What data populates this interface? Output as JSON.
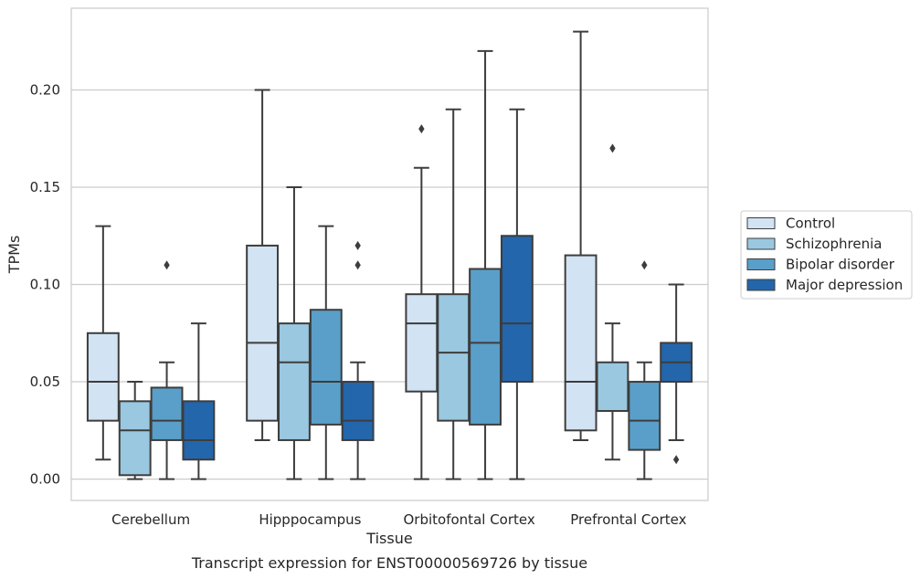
{
  "chart_data": {
    "type": "box",
    "title": "",
    "caption": "Transcript expression for ENST00000569726 by tissue",
    "xlabel": "Tissue",
    "ylabel": "TPMs",
    "ylim": [
      -0.011,
      0.242
    ],
    "yticks": [
      "0.00",
      "0.05",
      "0.10",
      "0.15",
      "0.20"
    ],
    "grid": "horizontal",
    "legend_position": "right",
    "categories": [
      "Cerebellum",
      "Hipppocampus",
      "Orbitofontal Cortex",
      "Prefrontal Cortex"
    ],
    "series": [
      {
        "name": "Control",
        "color": "#d2e3f3",
        "boxes": [
          {
            "whislo": 0.01,
            "q1": 0.03,
            "med": 0.05,
            "q3": 0.075,
            "whishi": 0.13,
            "fliers": []
          },
          {
            "whislo": 0.02,
            "q1": 0.03,
            "med": 0.07,
            "q3": 0.12,
            "whishi": 0.2,
            "fliers": []
          },
          {
            "whislo": 0.0,
            "q1": 0.045,
            "med": 0.08,
            "q3": 0.095,
            "whishi": 0.16,
            "fliers": [
              0.18
            ]
          },
          {
            "whislo": 0.02,
            "q1": 0.025,
            "med": 0.05,
            "q3": 0.115,
            "whishi": 0.23,
            "fliers": []
          }
        ]
      },
      {
        "name": "Schizophrenia",
        "color": "#9ac8e0",
        "boxes": [
          {
            "whislo": 0.0,
            "q1": 0.002,
            "med": 0.025,
            "q3": 0.04,
            "whishi": 0.05,
            "fliers": []
          },
          {
            "whislo": 0.0,
            "q1": 0.02,
            "med": 0.06,
            "q3": 0.08,
            "whishi": 0.15,
            "fliers": []
          },
          {
            "whislo": 0.0,
            "q1": 0.03,
            "med": 0.065,
            "q3": 0.095,
            "whishi": 0.19,
            "fliers": []
          },
          {
            "whislo": 0.01,
            "q1": 0.035,
            "med": 0.035,
            "q3": 0.06,
            "whishi": 0.08,
            "fliers": [
              0.17
            ]
          }
        ]
      },
      {
        "name": "Bipolar disorder",
        "color": "#5a9fc9",
        "boxes": [
          {
            "whislo": 0.0,
            "q1": 0.02,
            "med": 0.03,
            "q3": 0.047,
            "whishi": 0.06,
            "fliers": [
              0.11
            ]
          },
          {
            "whislo": 0.0,
            "q1": 0.028,
            "med": 0.05,
            "q3": 0.087,
            "whishi": 0.13,
            "fliers": []
          },
          {
            "whislo": 0.0,
            "q1": 0.028,
            "med": 0.07,
            "q3": 0.108,
            "whishi": 0.22,
            "fliers": []
          },
          {
            "whislo": 0.0,
            "q1": 0.015,
            "med": 0.03,
            "q3": 0.05,
            "whishi": 0.06,
            "fliers": [
              0.11
            ]
          }
        ]
      },
      {
        "name": "Major depression",
        "color": "#2366ab",
        "boxes": [
          {
            "whislo": 0.0,
            "q1": 0.01,
            "med": 0.02,
            "q3": 0.04,
            "whishi": 0.08,
            "fliers": []
          },
          {
            "whislo": 0.0,
            "q1": 0.02,
            "med": 0.03,
            "q3": 0.05,
            "whishi": 0.06,
            "fliers": [
              0.11,
              0.12
            ]
          },
          {
            "whislo": 0.0,
            "q1": 0.05,
            "med": 0.08,
            "q3": 0.125,
            "whishi": 0.19,
            "fliers": []
          },
          {
            "whislo": 0.02,
            "q1": 0.05,
            "med": 0.06,
            "q3": 0.07,
            "whishi": 0.1,
            "fliers": [
              0.01
            ]
          }
        ]
      }
    ]
  }
}
